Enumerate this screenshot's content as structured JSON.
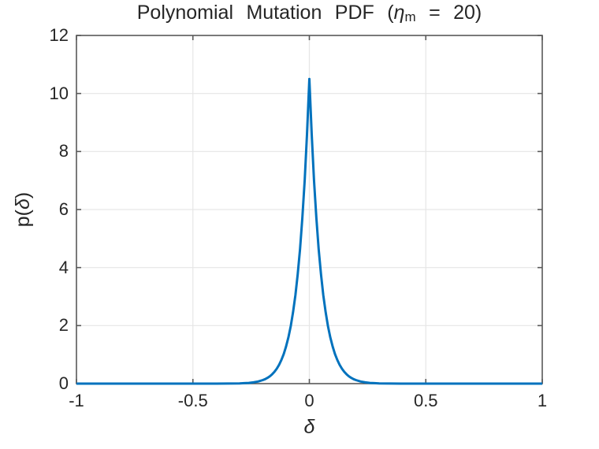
{
  "figure": {
    "title": {
      "prefix": "Polynomial Mutation PDF (",
      "eta": "η",
      "eta_sub": "m",
      "suffix": " = 20)"
    },
    "xlabel": {
      "delta": "δ"
    },
    "ylabel": {
      "open": "p(",
      "delta": "δ",
      "close": ")"
    }
  },
  "chart_data": {
    "type": "line",
    "title": "Polynomial Mutation PDF (η_m = 20)",
    "xlabel": "δ",
    "ylabel": "p(δ)",
    "xlim": [
      -1,
      1
    ],
    "ylim": [
      0,
      12
    ],
    "x_ticks": [
      -1,
      -0.5,
      0,
      0.5,
      1
    ],
    "x_tick_labels": [
      "-1",
      "-0.5",
      "0",
      "0.5",
      "1"
    ],
    "y_ticks": [
      0,
      2,
      4,
      6,
      8,
      10,
      12
    ],
    "y_tick_labels": [
      "0",
      "2",
      "4",
      "6",
      "8",
      "10",
      "12"
    ],
    "grid": true,
    "legend": false,
    "line_color": "#0072BD",
    "line_width": 3,
    "axis_color": "#595959",
    "grid_color": "#e6e6e6",
    "text_color": "#262626",
    "background": "#ffffff",
    "x": [
      -1,
      -0.9,
      -0.8,
      -0.7,
      -0.6,
      -0.5,
      -0.45,
      -0.4,
      -0.35,
      -0.3,
      -0.28,
      -0.26,
      -0.24,
      -0.22,
      -0.2,
      -0.19,
      -0.18,
      -0.17,
      -0.16,
      -0.15,
      -0.14,
      -0.13,
      -0.12,
      -0.11,
      -0.1,
      -0.09,
      -0.08,
      -0.07,
      -0.06,
      -0.05,
      -0.04,
      -0.03,
      -0.02,
      -0.01,
      0,
      0.01,
      0.02,
      0.03,
      0.04,
      0.05,
      0.06,
      0.07,
      0.08,
      0.09,
      0.1,
      0.11,
      0.12,
      0.13,
      0.14,
      0.15,
      0.16,
      0.17,
      0.18,
      0.19,
      0.2,
      0.22,
      0.24,
      0.26,
      0.28,
      0.3,
      0.35,
      0.4,
      0.45,
      0.5,
      0.6,
      0.7,
      0.8,
      0.9,
      1
    ],
    "y": [
      0,
      0,
      0,
      0,
      0,
      0,
      0,
      0,
      0.002,
      0.008,
      0.015,
      0.025,
      0.043,
      0.073,
      0.121,
      0.155,
      0.198,
      0.253,
      0.321,
      0.407,
      0.514,
      0.648,
      0.814,
      1.021,
      1.277,
      1.592,
      1.981,
      2.46,
      3.046,
      3.764,
      4.641,
      5.71,
      7.01,
      8.588,
      10.5,
      8.588,
      7.01,
      5.71,
      4.641,
      3.764,
      3.046,
      2.46,
      1.981,
      1.592,
      1.277,
      1.021,
      0.814,
      0.648,
      0.514,
      0.407,
      0.321,
      0.253,
      0.198,
      0.155,
      0.121,
      0.073,
      0.043,
      0.025,
      0.015,
      0.008,
      0.002,
      0,
      0,
      0,
      0,
      0,
      0,
      0,
      0
    ]
  }
}
